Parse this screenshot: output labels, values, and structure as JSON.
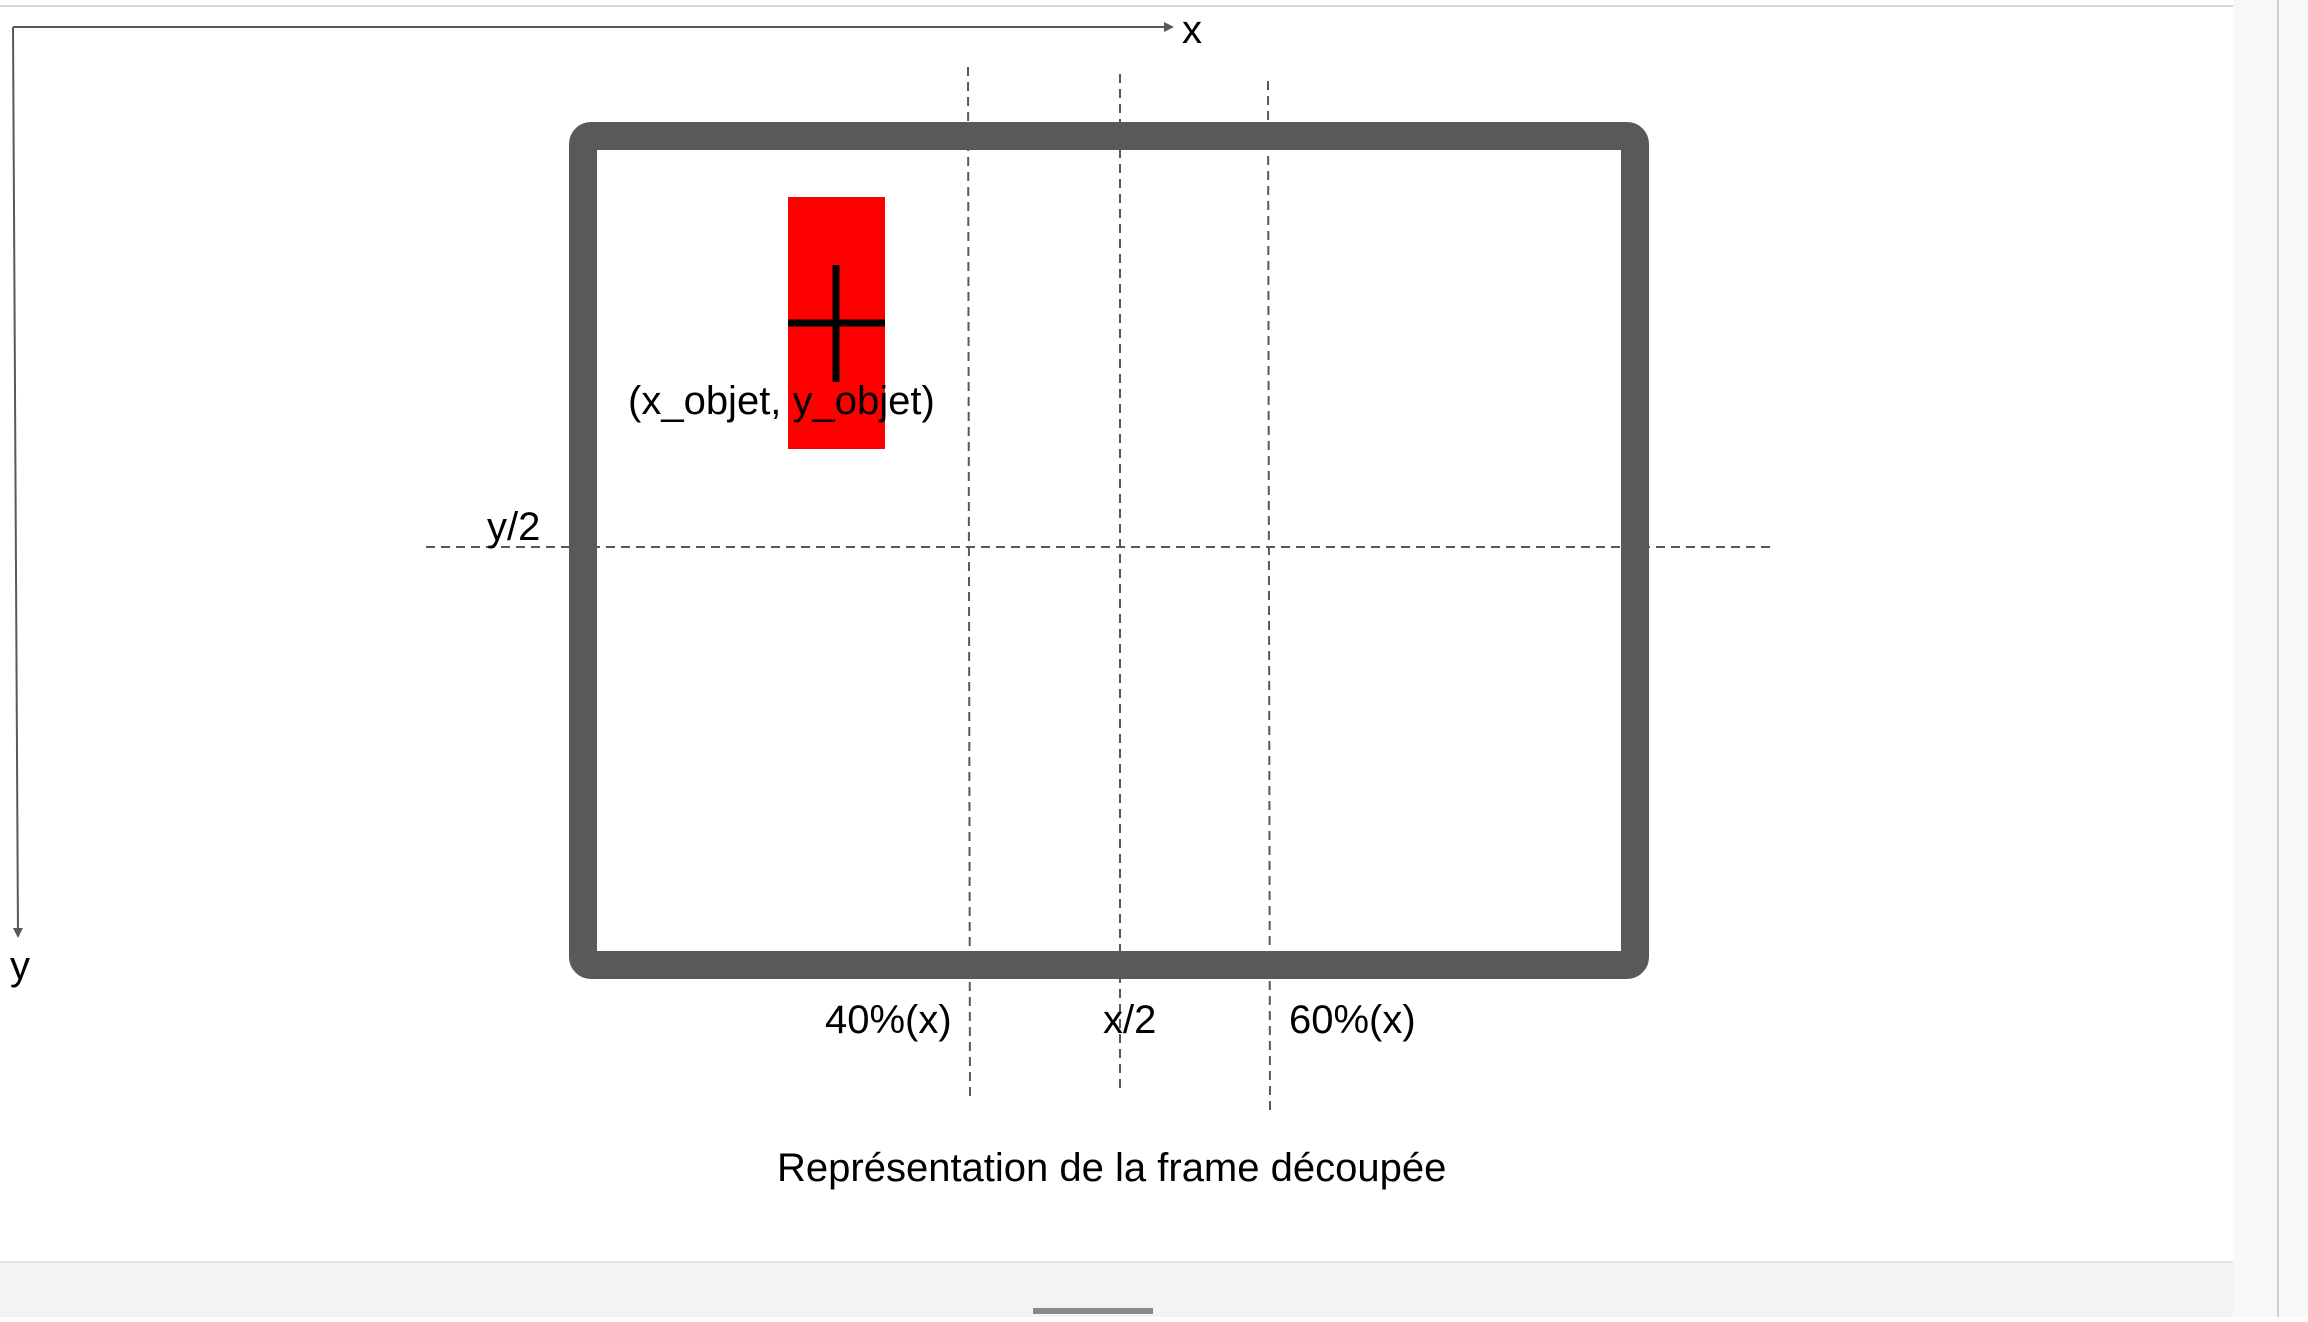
{
  "axes": {
    "x_label": "x",
    "y_label": "y"
  },
  "guides": {
    "horizontal_label": "y/2",
    "vertical_labels": [
      "40%(x)",
      "x/2",
      "60%(x)"
    ]
  },
  "object": {
    "label": "(x_objet, y_objet)"
  },
  "caption": "Représentation de la frame découpée",
  "colors": {
    "frame": "#595959",
    "object": "#ff0000",
    "axis": "#595959",
    "guide": "#595959",
    "page_bottom_bar": "#f3f3f3",
    "scrollbar": "#f8f8f8"
  }
}
